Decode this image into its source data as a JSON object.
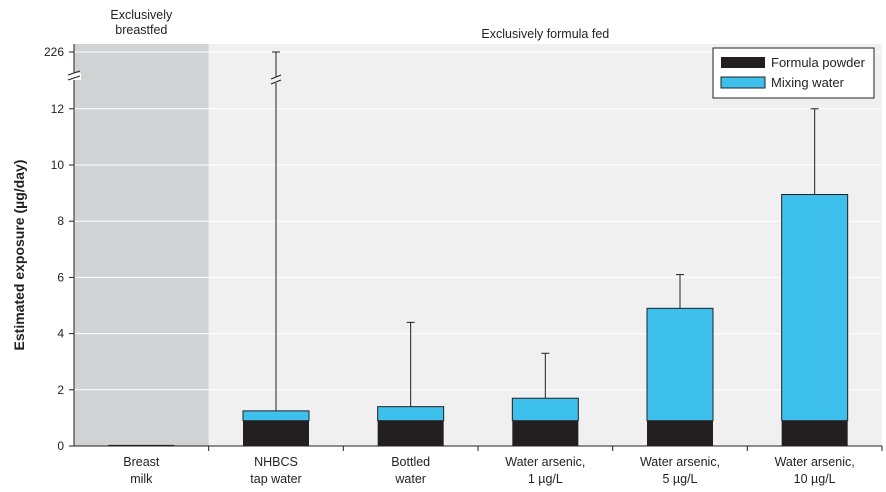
{
  "chart_data": {
    "type": "bar",
    "stacked": true,
    "ylabel": "Estimated exposure (µg/day)",
    "yticks": [
      "0",
      "2",
      "4",
      "6",
      "8",
      "10",
      "12",
      "226"
    ],
    "ylim": [
      0,
      13
    ],
    "axis_break": {
      "after": 12,
      "top_label": "226"
    },
    "regions": [
      {
        "label_lines": [
          "Exclusively",
          "breastfed"
        ],
        "categories": [
          0
        ],
        "shaded": true,
        "color": "#d1d2d4"
      },
      {
        "label_lines": [
          "Exclusively formula fed"
        ],
        "categories": [
          1,
          2,
          3,
          4,
          5
        ],
        "shaded": false,
        "color": "#f0f0f0"
      }
    ],
    "categories": [
      [
        "Breast",
        "milk"
      ],
      [
        "NHBCS",
        "tap water"
      ],
      [
        "Bottled",
        "water"
      ],
      [
        "Water arsenic,",
        "1 µg/L"
      ],
      [
        "Water arsenic,",
        "5 µg/L"
      ],
      [
        "Water arsenic,",
        "10 µg/L"
      ]
    ],
    "series": [
      {
        "name": "Formula powder",
        "color": "#231f20",
        "values": [
          0.04,
          0.9,
          0.9,
          0.9,
          0.9,
          0.9
        ]
      },
      {
        "name": "Mixing water",
        "color": "#3ec0ec",
        "values": [
          0,
          0.35,
          0.5,
          0.8,
          4.0,
          8.05
        ]
      }
    ],
    "error_upper": [
      null,
      226,
      4.4,
      3.3,
      6.1,
      12.0
    ],
    "legend_position": "top-right"
  }
}
